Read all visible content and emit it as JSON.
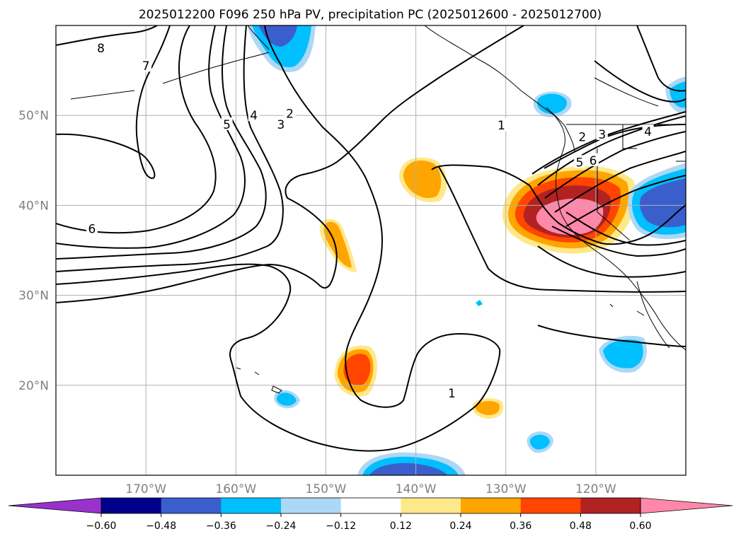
{
  "chart_data": {
    "type": "contour-map",
    "title": "2025012200 F096 250 hPa PV, precipitation PC (2025012600 - 2025012700)",
    "map": {
      "lon_range": [
        -180,
        -110
      ],
      "lat_range": [
        10,
        60
      ],
      "xticks": [
        {
          "lon": -170,
          "label": "170°W"
        },
        {
          "lon": -160,
          "label": "160°W"
        },
        {
          "lon": -150,
          "label": "150°W"
        },
        {
          "lon": -140,
          "label": "140°W"
        },
        {
          "lon": -130,
          "label": "130°W"
        },
        {
          "lon": -120,
          "label": "120°W"
        }
      ],
      "yticks": [
        {
          "lat": 20,
          "label": "20°N"
        },
        {
          "lat": 30,
          "label": "30°N"
        },
        {
          "lat": 40,
          "label": "40°N"
        },
        {
          "lat": 50,
          "label": "50°N"
        }
      ],
      "grid": true
    },
    "pv_contour_labels": [
      {
        "text": "8",
        "lon": -175,
        "lat": 57.5
      },
      {
        "text": "7",
        "lon": -170,
        "lat": 55.5
      },
      {
        "text": "6",
        "lon": -176,
        "lat": 37.4
      },
      {
        "text": "5",
        "lon": -161,
        "lat": 49
      },
      {
        "text": "4",
        "lon": -158,
        "lat": 50
      },
      {
        "text": "3",
        "lon": -155,
        "lat": 49
      },
      {
        "text": "2",
        "lon": -154,
        "lat": 50.2
      },
      {
        "text": "1",
        "lon": -130.5,
        "lat": 48.9
      },
      {
        "text": "2",
        "lon": -121.5,
        "lat": 47.6
      },
      {
        "text": "3",
        "lon": -119.3,
        "lat": 47.9
      },
      {
        "text": "4",
        "lon": -114.2,
        "lat": 48.2
      },
      {
        "text": "5",
        "lon": -121.8,
        "lat": 44.8
      },
      {
        "text": "6",
        "lon": -120.3,
        "lat": 45.0
      },
      {
        "text": "1",
        "lon": -136,
        "lat": 19.1
      }
    ],
    "colorbar": {
      "boundaries": [
        -0.72,
        -0.6,
        -0.48,
        -0.36,
        -0.24,
        -0.12,
        0.12,
        0.24,
        0.36,
        0.48,
        0.6,
        0.72
      ],
      "colors": [
        "#9932cc",
        "#00008b",
        "#3a5fcd",
        "#00bfff",
        "#add8f5",
        "#ffffff",
        "#ffe88a",
        "#ffa500",
        "#ff4500",
        "#b22222",
        "#ff88aa",
        "#ff88aa"
      ],
      "tick_labels": [
        "−0.60",
        "−0.48",
        "−0.36",
        "−0.24",
        "−0.12",
        "0.12",
        "0.24",
        "0.36",
        "0.48",
        "0.60"
      ],
      "extend": "both"
    }
  }
}
